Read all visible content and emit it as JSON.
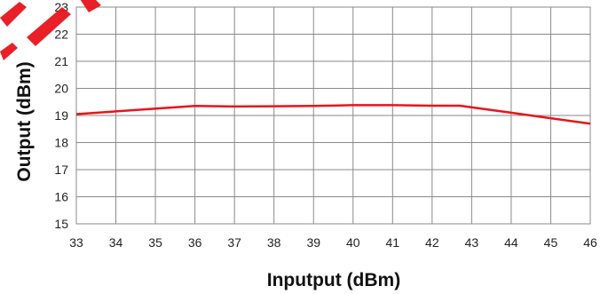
{
  "chart_data": {
    "type": "line",
    "title": "",
    "xlabel": "Inputput (dBm)",
    "ylabel": "Output (dBm)",
    "xlim": [
      33,
      46
    ],
    "ylim": [
      15,
      23
    ],
    "x_ticks": [
      "33",
      "34",
      "35",
      "36",
      "37",
      "38",
      "39",
      "40",
      "41",
      "42",
      "43",
      "44",
      "45",
      "46"
    ],
    "y_ticks": [
      "15",
      "16",
      "17",
      "18",
      "19",
      "20",
      "21",
      "22",
      "23"
    ],
    "grid": true,
    "legend": "none",
    "series": [
      {
        "color": "#e8141c",
        "x": [
          33,
          36,
          37,
          38,
          39,
          40,
          41,
          42,
          42.7,
          44,
          45,
          46
        ],
        "y": [
          19.05,
          19.35,
          19.33,
          19.34,
          19.35,
          19.38,
          19.38,
          19.36,
          19.36,
          19.1,
          18.9,
          18.7
        ]
      }
    ]
  },
  "watermark": {
    "color": "#e8141c"
  }
}
